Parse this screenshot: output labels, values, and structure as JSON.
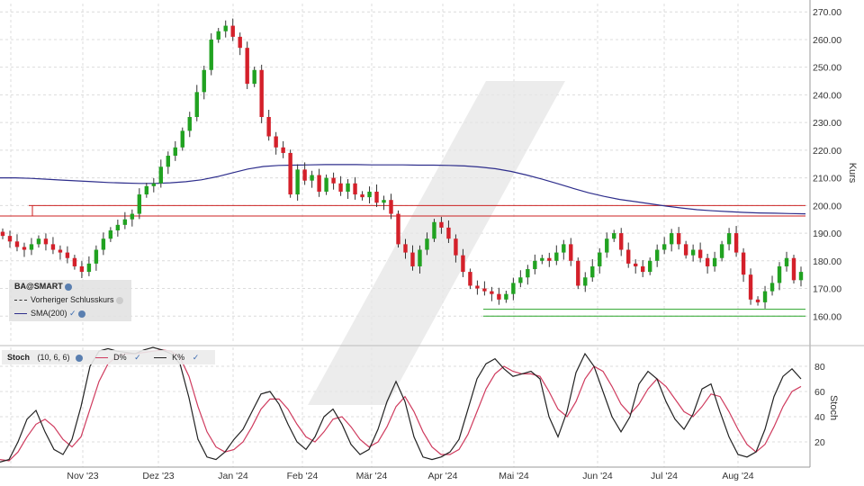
{
  "colors": {
    "up": "#21a221",
    "down": "#d4202a",
    "sma": "#2e2e8c",
    "hline": "#cc2222",
    "support": "#2aa52a",
    "stoch_k": "#222222",
    "stoch_d": "#cf3b5e"
  },
  "legend": {
    "symbol": "BA@SMART",
    "prev_close": "Vorheriger Schlusskurs",
    "sma": "SMA(200)"
  },
  "stoch_legend": {
    "name": "Stoch",
    "params": "(10, 6, 6)",
    "d": "D%",
    "k": "K%"
  },
  "chart_data": [
    {
      "type": "candlestick",
      "ylabel": "Kurs",
      "ylim": [
        150,
        273
      ],
      "yticks": [
        "160.00",
        "170.00",
        "180.00",
        "190.00",
        "200.00",
        "210.00",
        "220.00",
        "230.00",
        "240.00",
        "250.00",
        "260.00",
        "270.00"
      ],
      "xticks": [
        "Nov '23",
        "Dez '23",
        "Jan '24",
        "Feb '24",
        "Mär '24",
        "Apr '24",
        "Mai '24",
        "Jun '24",
        "Jul '24",
        "Aug '24"
      ],
      "hlines": [
        200,
        196.2
      ],
      "support": [
        162.5,
        160
      ],
      "sma": [
        210,
        210,
        209.8,
        209.5,
        209.2,
        208.9,
        208.6,
        208.3,
        208.1,
        208,
        208,
        208.2,
        208.6,
        209.3,
        210.4,
        211.8,
        213.2,
        214.1,
        214.5,
        214.6,
        214.7,
        214.8,
        214.8,
        214.8,
        214.7,
        214.7,
        214.7,
        214.6,
        214.6,
        214.5,
        214.3,
        213.9,
        213.3,
        212.3,
        211,
        209.5,
        207.9,
        206.2,
        204.6,
        203.3,
        202.2,
        201.4,
        200.6,
        199.8,
        199.1,
        198.5,
        198.1,
        197.8,
        197.5,
        197.3,
        197.2,
        197.1,
        197
      ],
      "close": [
        189,
        187,
        185,
        184,
        186,
        188,
        186,
        184,
        183,
        181,
        178,
        176,
        179,
        184,
        188,
        191,
        193,
        195,
        197,
        204,
        207,
        208,
        214,
        218,
        221,
        227,
        232,
        241,
        249,
        260,
        263,
        265,
        261,
        257,
        244,
        249,
        232,
        225,
        221,
        219,
        204,
        213,
        209,
        211,
        205,
        210,
        208,
        205,
        208,
        204,
        203,
        205,
        201,
        202,
        197,
        186,
        183,
        178,
        184,
        188,
        194,
        192,
        188,
        182,
        176,
        171,
        170,
        169,
        168,
        166,
        168,
        172,
        174,
        177,
        180,
        181,
        180,
        183,
        186,
        180,
        171,
        174,
        178,
        183,
        188,
        190,
        184,
        179,
        178,
        176,
        180,
        184,
        186,
        190,
        186,
        182,
        184,
        181,
        178,
        181,
        186,
        190,
        183,
        175,
        166,
        165,
        169,
        172,
        178,
        181,
        173,
        176
      ]
    },
    {
      "type": "line",
      "ylabel": "Stoch",
      "ylim": [
        0,
        95
      ],
      "yticks": [
        "20",
        "40",
        "60",
        "80"
      ],
      "series": [
        {
          "name": "K%",
          "values": [
            4,
            6,
            20,
            38,
            45,
            28,
            14,
            10,
            22,
            48,
            80,
            92,
            94,
            92,
            91,
            90,
            93,
            95,
            93,
            90,
            82,
            55,
            22,
            8,
            6,
            12,
            22,
            30,
            44,
            58,
            60,
            50,
            34,
            20,
            14,
            24,
            40,
            46,
            34,
            18,
            10,
            14,
            30,
            52,
            68,
            52,
            24,
            8,
            6,
            8,
            12,
            22,
            46,
            70,
            82,
            86,
            78,
            72,
            74,
            76,
            70,
            40,
            24,
            44,
            75,
            90,
            80,
            60,
            40,
            28,
            40,
            66,
            76,
            70,
            52,
            38,
            30,
            42,
            62,
            66,
            44,
            24,
            10,
            8,
            12,
            30,
            56,
            72,
            78,
            70
          ]
        },
        {
          "name": "D%",
          "values": [
            6,
            5,
            12,
            24,
            34,
            38,
            32,
            22,
            16,
            24,
            46,
            68,
            82,
            88,
            90,
            90,
            91,
            92,
            93,
            92,
            87,
            72,
            48,
            28,
            16,
            12,
            14,
            20,
            32,
            46,
            54,
            54,
            46,
            34,
            24,
            20,
            28,
            38,
            40,
            32,
            22,
            16,
            20,
            32,
            48,
            56,
            44,
            28,
            16,
            10,
            10,
            14,
            26,
            44,
            62,
            74,
            80,
            76,
            74,
            74,
            72,
            60,
            46,
            40,
            52,
            70,
            80,
            76,
            64,
            50,
            42,
            50,
            62,
            70,
            64,
            54,
            44,
            40,
            48,
            58,
            56,
            44,
            30,
            18,
            12,
            18,
            32,
            48,
            60,
            64
          ]
        }
      ]
    }
  ]
}
